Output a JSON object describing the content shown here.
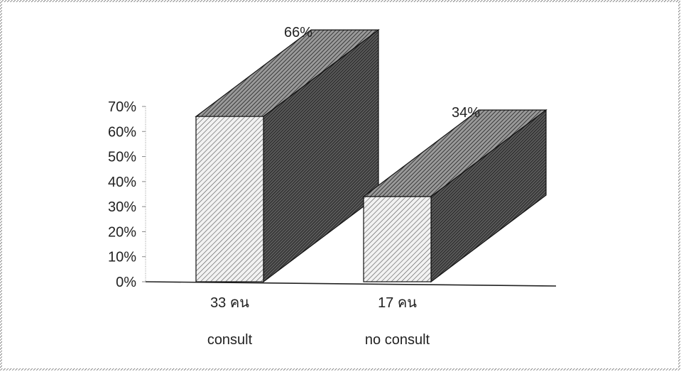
{
  "chart_data": {
    "type": "bar",
    "style": "3d",
    "categories": [
      "consult",
      "no consult"
    ],
    "counts": [
      "33 คน",
      "17 คน"
    ],
    "values": [
      66,
      34
    ],
    "value_labels": [
      "66%",
      "34%"
    ],
    "value_unit": "%",
    "ylim": [
      0,
      70
    ],
    "yticks": [
      0,
      10,
      20,
      30,
      40,
      50,
      60,
      70
    ],
    "ytick_labels": [
      "0%",
      "10%",
      "20%",
      "30%",
      "40%",
      "50%",
      "60%",
      "70%"
    ],
    "title": "",
    "xlabel": "",
    "ylabel": "",
    "grid": false,
    "legend": "none",
    "colors": {
      "ink": "#222222",
      "front_face": "#e8e8e8",
      "side_face": "#3a3a3a",
      "top_face": "#6a6a6a",
      "frame": "#444444"
    }
  }
}
